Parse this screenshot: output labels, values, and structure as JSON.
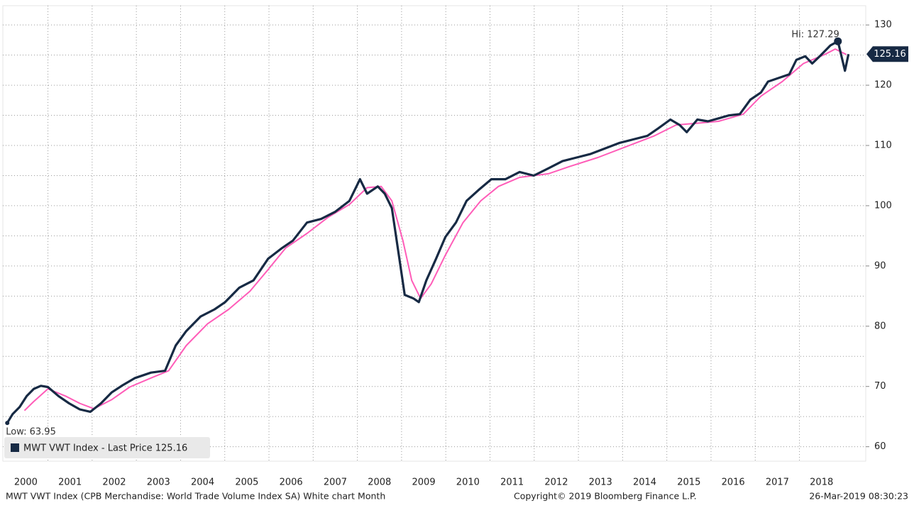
{
  "chart_data": {
    "type": "line",
    "xlim": [
      1999.98,
      2019.5
    ],
    "ylim": [
      57.6,
      133.2
    ],
    "xticks": [
      2000,
      2001,
      2002,
      2003,
      2004,
      2005,
      2006,
      2007,
      2008,
      2009,
      2010,
      2011,
      2012,
      2013,
      2014,
      2015,
      2016,
      2017,
      2018
    ],
    "yticks": [
      60,
      70,
      80,
      90,
      100,
      110,
      120,
      130
    ],
    "grid": true,
    "series": [
      {
        "name": "MWT VWT Index - Last Price 125.16",
        "color": "#172a44",
        "x": [
          2000.08,
          2000.2,
          2000.36,
          2000.52,
          2000.68,
          2000.84,
          2001.0,
          2001.24,
          2001.48,
          2001.72,
          2001.96,
          2002.2,
          2002.44,
          2002.69,
          2002.97,
          2003.33,
          2003.65,
          2003.89,
          2004.13,
          2004.45,
          2004.77,
          2005.01,
          2005.33,
          2005.65,
          2005.98,
          2006.3,
          2006.54,
          2006.86,
          2007.18,
          2007.5,
          2007.82,
          2008.06,
          2008.22,
          2008.46,
          2008.62,
          2008.78,
          2008.95,
          2009.07,
          2009.27,
          2009.39,
          2009.56,
          2009.78,
          2009.99,
          2010.23,
          2010.47,
          2010.74,
          2011.03,
          2011.35,
          2011.67,
          2011.99,
          2012.32,
          2012.64,
          2012.96,
          2013.28,
          2013.6,
          2013.92,
          2014.24,
          2014.56,
          2014.8,
          2015.08,
          2015.29,
          2015.45,
          2015.69,
          2015.93,
          2016.17,
          2016.41,
          2016.65,
          2016.89,
          2017.13,
          2017.29,
          2017.53,
          2017.77,
          2017.93,
          2018.13,
          2018.29,
          2018.5,
          2018.7,
          2018.87,
          2019.03,
          2019.11
        ],
        "values": [
          63.95,
          65.4,
          66.6,
          68.4,
          69.6,
          70.1,
          69.9,
          68.4,
          67.2,
          66.2,
          65.8,
          67.2,
          69.0,
          70.2,
          71.4,
          72.3,
          72.6,
          76.8,
          79.2,
          81.6,
          82.8,
          84.0,
          86.4,
          87.6,
          91.2,
          93.0,
          94.2,
          97.2,
          97.8,
          99.0,
          100.8,
          104.4,
          102.0,
          103.2,
          102.0,
          99.6,
          91.2,
          85.2,
          84.6,
          84.0,
          87.6,
          91.2,
          94.8,
          97.2,
          100.8,
          102.6,
          104.4,
          104.4,
          105.6,
          105.0,
          106.2,
          107.4,
          108.0,
          108.6,
          109.5,
          110.4,
          111.0,
          111.6,
          112.8,
          114.3,
          113.4,
          112.2,
          114.3,
          114.0,
          114.5,
          115.0,
          115.2,
          117.6,
          118.8,
          120.6,
          121.2,
          121.8,
          124.2,
          124.8,
          123.6,
          125.1,
          126.6,
          127.29,
          122.4,
          125.16
        ]
      },
      {
        "color": "#ff5cb8",
        "x": [
          2000.47,
          2000.68,
          2001.0,
          2001.4,
          2001.72,
          2002.04,
          2002.44,
          2002.85,
          2003.33,
          2003.73,
          2004.13,
          2004.61,
          2005.09,
          2005.57,
          2005.98,
          2006.38,
          2006.86,
          2007.34,
          2007.82,
          2008.22,
          2008.54,
          2008.78,
          2009.03,
          2009.23,
          2009.43,
          2009.67,
          2009.99,
          2010.39,
          2010.79,
          2011.19,
          2011.67,
          2012.32,
          2012.8,
          2013.44,
          2014.08,
          2014.72,
          2015.21,
          2015.69,
          2016.17,
          2016.73,
          2017.13,
          2017.61,
          2018.09,
          2018.57,
          2018.81,
          2019.06
        ],
        "values": [
          66.0,
          67.5,
          69.6,
          68.4,
          67.2,
          66.3,
          67.8,
          69.9,
          71.4,
          72.6,
          76.8,
          80.4,
          82.8,
          85.8,
          89.4,
          93.0,
          95.4,
          98.1,
          100.2,
          103.0,
          103.2,
          100.8,
          94.2,
          87.6,
          84.6,
          87.0,
          91.8,
          97.2,
          100.8,
          103.2,
          104.7,
          105.3,
          106.5,
          108.0,
          109.8,
          111.6,
          113.4,
          113.7,
          114.0,
          115.2,
          118.2,
          120.6,
          123.6,
          125.1,
          126.0,
          125.1
        ]
      }
    ],
    "annotations": [
      {
        "text": "Hi: 127.29",
        "x": 2018.87,
        "y": 127.29
      },
      {
        "text": "Low: 63.95",
        "x": 2000.08,
        "y": 63.95
      }
    ],
    "last_price": 125.16,
    "footer": {
      "description": "MWT VWT Index (CPB Merchandise: World Trade Volume Index  SA) White chart  Month",
      "copyright": "Copyright© 2019 Bloomberg Finance L.P.",
      "timestamp": "26-Mar-2019 08:30:23"
    }
  }
}
